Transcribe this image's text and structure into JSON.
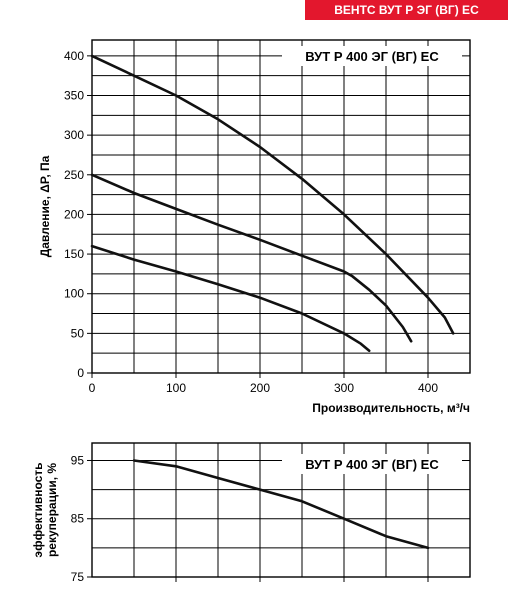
{
  "header": {
    "banner_text": "ВЕНТС ВУТ Р ЭГ (ВГ) ЕС",
    "banner_color": "#e3172d"
  },
  "chart_data": [
    {
      "type": "line",
      "title": "ВУТ Р 400 ЭГ (ВГ) ЕС",
      "xlabel": "Производительность, м³/ч",
      "ylabel": "Давление, ΔP, Па",
      "xlim": [
        0,
        450
      ],
      "ylim": [
        0,
        420
      ],
      "x_ticks": [
        "0",
        "100",
        "200",
        "300",
        "400"
      ],
      "y_ticks": [
        "0",
        "50",
        "100",
        "150",
        "200",
        "250",
        "300",
        "350",
        "400"
      ],
      "grid": true,
      "series": [
        {
          "x": [
            0,
            50,
            100,
            150,
            200,
            250,
            300,
            350,
            400,
            420,
            430
          ],
          "y": [
            400,
            375,
            350,
            320,
            285,
            245,
            200,
            150,
            95,
            70,
            50
          ]
        },
        {
          "x": [
            0,
            50,
            100,
            150,
            200,
            250,
            300,
            310,
            330,
            350,
            370,
            380
          ],
          "y": [
            250,
            227,
            207,
            187,
            168,
            148,
            128,
            122,
            105,
            85,
            58,
            40
          ]
        },
        {
          "x": [
            0,
            50,
            100,
            150,
            200,
            250,
            300,
            320,
            330
          ],
          "y": [
            160,
            143,
            128,
            112,
            95,
            75,
            50,
            37,
            28
          ]
        }
      ]
    },
    {
      "type": "line",
      "title": "ВУТ Р 400 ЭГ (ВГ) ЕС",
      "xlabel": "",
      "ylabel": "эффективность рекуперации, %",
      "xlim": [
        0,
        450
      ],
      "ylim": [
        75,
        98
      ],
      "y_ticks": [
        "75",
        "85",
        "95"
      ],
      "grid": true,
      "series": [
        {
          "x": [
            50,
            100,
            150,
            200,
            250,
            300,
            350,
            400
          ],
          "y": [
            95,
            94,
            92,
            90,
            88,
            85,
            82,
            80
          ]
        }
      ]
    }
  ]
}
